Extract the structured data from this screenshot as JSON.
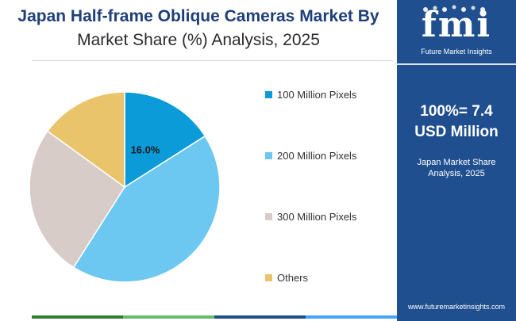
{
  "title": {
    "line1": "Japan Half-frame Oblique Cameras Market By",
    "line2": "Market Share (%) Analysis, 2025"
  },
  "chart_data": {
    "type": "pie",
    "categories": [
      "100 Million Pixels",
      "200 Million Pixels",
      "300 Million Pixels",
      "Others"
    ],
    "values": [
      16.0,
      43.0,
      26.0,
      15.0
    ],
    "colors": [
      "#0a9bd8",
      "#6cc8f0",
      "#d7ccc8",
      "#e9c46a"
    ],
    "data_labels": [
      "16.0%",
      "",
      "",
      ""
    ],
    "legend_position": "right"
  },
  "legend": {
    "items": [
      "100 Million Pixels",
      "200 Million Pixels",
      "300 Million Pixels",
      "Others"
    ]
  },
  "panel": {
    "logo_text": "fmi",
    "logo_subtitle": "Future Market Insights",
    "total_value": "100%= 7.4 USD Million",
    "total_line1": "100%= 7.4",
    "total_line2": "USD Million",
    "desc_line1": "Japan Market Share",
    "desc_line2": "Analysis, 2025",
    "website": "www.futuremarketinsights.com"
  },
  "colors": {
    "panel_bg": "#1f4f8f",
    "title": "#1f3f7a"
  }
}
